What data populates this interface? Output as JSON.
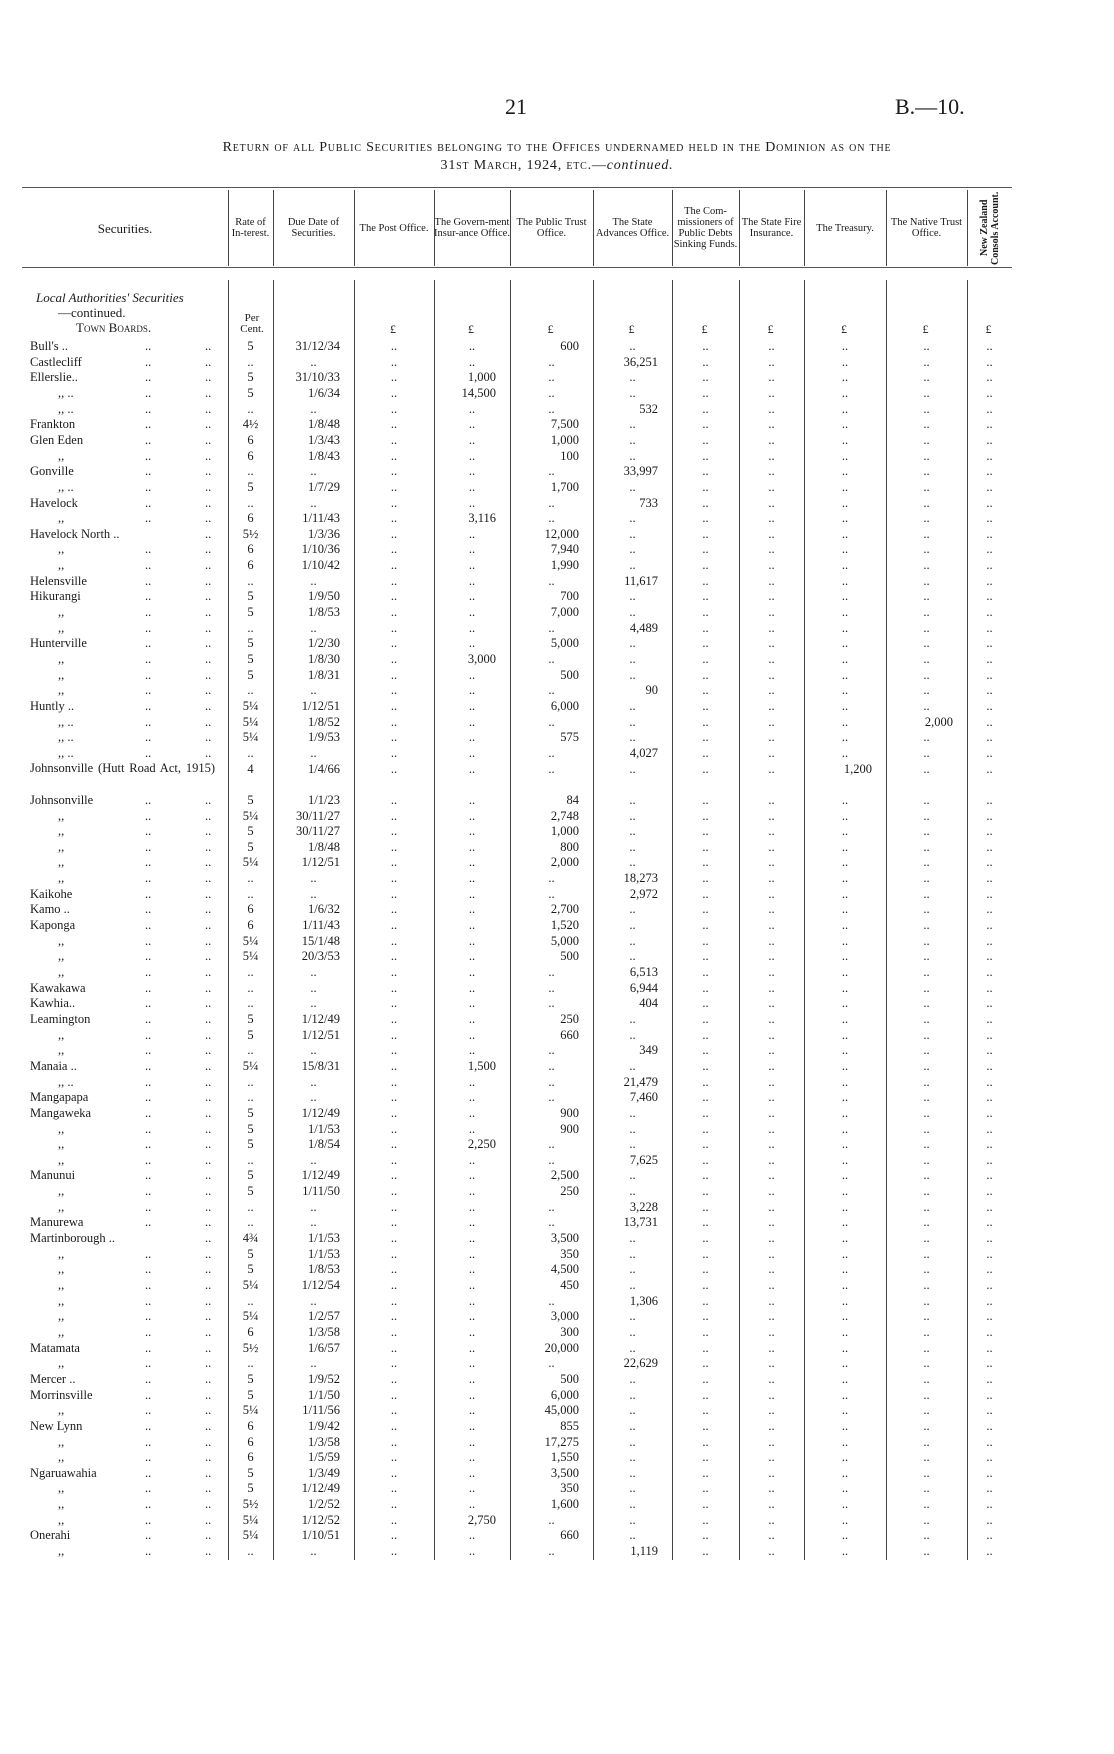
{
  "page_number": "21",
  "doc_ref": "B.—10.",
  "title_line1": "Return of all Public Securities belonging to the Offices undernamed held in the Dominion as on the",
  "title_line2": "31st March, 1924, etc.—",
  "title_continued": "continued.",
  "headers": [
    "Securities.",
    "Rate of In-terest.",
    "Due Date of Securities.",
    "The Post Office.",
    "The Govern-ment Insur-ance Office.",
    "The Public Trust Office.",
    "The State Advances Office.",
    "The Com-missioners of Public Debts Sinking Funds.",
    "The State Fire Insurance.",
    "The Treasury.",
    "The Native Trust Office.",
    "New Zealand Consols Account."
  ],
  "section_title": "Local Authorities' Securities",
  "section_continued": "—continued.",
  "subsection": "Town Boards.",
  "rate_unit": "Per Cent.",
  "currency_symbol": "£",
  "leader": "..",
  "rows": [
    [
      "Bull's ..",
      "5",
      "31/12/34",
      "..",
      "..",
      "600",
      "..",
      "..",
      "..",
      "..",
      "..",
      ".."
    ],
    [
      "Castlecliff",
      "..",
      "..",
      "..",
      "..",
      "..",
      "36,251",
      "..",
      "..",
      "..",
      "..",
      ".."
    ],
    [
      "Ellerslie..",
      "5",
      "31/10/33",
      "..",
      "1,000",
      "..",
      "..",
      "..",
      "..",
      "..",
      "..",
      ".."
    ],
    [
      ",, ..",
      "5",
      "1/6/34",
      "..",
      "14,500",
      "..",
      "..",
      "..",
      "..",
      "..",
      "..",
      ".."
    ],
    [
      ",, ..",
      "..",
      "..",
      "..",
      "..",
      "..",
      "532",
      "..",
      "..",
      "..",
      "..",
      ".."
    ],
    [
      "Frankton",
      "4½",
      "1/8/48",
      "..",
      "..",
      "7,500",
      "..",
      "..",
      "..",
      "..",
      "..",
      ".."
    ],
    [
      "Glen Eden",
      "6",
      "1/3/43",
      "..",
      "..",
      "1,000",
      "..",
      "..",
      "..",
      "..",
      "..",
      ".."
    ],
    [
      ",,",
      "6",
      "1/8/43",
      "..",
      "..",
      "100",
      "..",
      "..",
      "..",
      "..",
      "..",
      ".."
    ],
    [
      "Gonville",
      "..",
      "..",
      "..",
      "..",
      "..",
      "33,997",
      "..",
      "..",
      "..",
      "..",
      ".."
    ],
    [
      ",, ..",
      "5",
      "1/7/29",
      "..",
      "..",
      "1,700",
      "..",
      "..",
      "..",
      "..",
      "..",
      ".."
    ],
    [
      "Havelock",
      "..",
      "..",
      "..",
      "..",
      "..",
      "733",
      "..",
      "..",
      "..",
      "..",
      ".."
    ],
    [
      ",,",
      "6",
      "1/11/43",
      "..",
      "3,116",
      "..",
      "..",
      "..",
      "..",
      "..",
      "..",
      ".."
    ],
    [
      "Havelock North ..",
      "5½",
      "1/3/36",
      "..",
      "..",
      "12,000",
      "..",
      "..",
      "..",
      "..",
      "..",
      ".."
    ],
    [
      ",,",
      "6",
      "1/10/36",
      "..",
      "..",
      "7,940",
      "..",
      "..",
      "..",
      "..",
      "..",
      ".."
    ],
    [
      ",,",
      "6",
      "1/10/42",
      "..",
      "..",
      "1,990",
      "..",
      "..",
      "..",
      "..",
      "..",
      ".."
    ],
    [
      "Helensville",
      "..",
      "..",
      "..",
      "..",
      "..",
      "11,617",
      "..",
      "..",
      "..",
      "..",
      ".."
    ],
    [
      "Hikurangi",
      "5",
      "1/9/50",
      "..",
      "..",
      "700",
      "..",
      "..",
      "..",
      "..",
      "..",
      ".."
    ],
    [
      ",,",
      "5",
      "1/8/53",
      "..",
      "..",
      "7,000",
      "..",
      "..",
      "..",
      "..",
      "..",
      ".."
    ],
    [
      ",,",
      "..",
      "..",
      "..",
      "..",
      "..",
      "4,489",
      "..",
      "..",
      "..",
      "..",
      ".."
    ],
    [
      "Hunterville",
      "5",
      "1/2/30",
      "..",
      "..",
      "5,000",
      "..",
      "..",
      "..",
      "..",
      "..",
      ".."
    ],
    [
      ",,",
      "5",
      "1/8/30",
      "..",
      "3,000",
      "..",
      "..",
      "..",
      "..",
      "..",
      "..",
      ".."
    ],
    [
      ",,",
      "5",
      "1/8/31",
      "..",
      "..",
      "500",
      "..",
      "..",
      "..",
      "..",
      "..",
      ".."
    ],
    [
      ",,",
      "..",
      "..",
      "..",
      "..",
      "..",
      "90",
      "..",
      "..",
      "..",
      "..",
      ".."
    ],
    [
      "Huntly ..",
      "5¼",
      "1/12/51",
      "..",
      "..",
      "6,000",
      "..",
      "..",
      "..",
      "..",
      "..",
      ".."
    ],
    [
      ",, ..",
      "5¼",
      "1/8/52",
      "..",
      "..",
      "..",
      "..",
      "..",
      "..",
      "..",
      "2,000",
      ".."
    ],
    [
      ",, ..",
      "5¼",
      "1/9/53",
      "..",
      "..",
      "575",
      "..",
      "..",
      "..",
      "..",
      "..",
      ".."
    ],
    [
      ",, ..",
      "..",
      "..",
      "..",
      "..",
      "..",
      "4,027",
      "..",
      "..",
      "..",
      "..",
      ".."
    ],
    [
      "Johnsonville (Hutt Road Act, 1915)",
      "4",
      "1/4/66",
      "..",
      "..",
      "..",
      "..",
      "..",
      "..",
      "1,200",
      "..",
      ".."
    ],
    [
      "Johnsonville",
      "5",
      "1/1/23",
      "..",
      "..",
      "84",
      "..",
      "..",
      "..",
      "..",
      "..",
      ".."
    ],
    [
      ",,",
      "5¼",
      "30/11/27",
      "..",
      "..",
      "2,748",
      "..",
      "..",
      "..",
      "..",
      "..",
      ".."
    ],
    [
      ",,",
      "5",
      "30/11/27",
      "..",
      "..",
      "1,000",
      "..",
      "..",
      "..",
      "..",
      "..",
      ".."
    ],
    [
      ",,",
      "5",
      "1/8/48",
      "..",
      "..",
      "800",
      "..",
      "..",
      "..",
      "..",
      "..",
      ".."
    ],
    [
      ",,",
      "5¼",
      "1/12/51",
      "..",
      "..",
      "2,000",
      "..",
      "..",
      "..",
      "..",
      "..",
      ".."
    ],
    [
      ",,",
      "..",
      "..",
      "..",
      "..",
      "..",
      "18,273",
      "..",
      "..",
      "..",
      "..",
      ".."
    ],
    [
      "Kaikohe",
      "..",
      "..",
      "..",
      "..",
      "..",
      "2,972",
      "..",
      "..",
      "..",
      "..",
      ".."
    ],
    [
      "Kamo ..",
      "6",
      "1/6/32",
      "..",
      "..",
      "2,700",
      "..",
      "..",
      "..",
      "..",
      "..",
      ".."
    ],
    [
      "Kaponga",
      "6",
      "1/11/43",
      "..",
      "..",
      "1,520",
      "..",
      "..",
      "..",
      "..",
      "..",
      ".."
    ],
    [
      ",,",
      "5¼",
      "15/1/48",
      "..",
      "..",
      "5,000",
      "..",
      "..",
      "..",
      "..",
      "..",
      ".."
    ],
    [
      ",,",
      "5¼",
      "20/3/53",
      "..",
      "..",
      "500",
      "..",
      "..",
      "..",
      "..",
      "..",
      ".."
    ],
    [
      ",,",
      "..",
      "..",
      "..",
      "..",
      "..",
      "6,513",
      "..",
      "..",
      "..",
      "..",
      ".."
    ],
    [
      "Kawakawa",
      "..",
      "..",
      "..",
      "..",
      "..",
      "6,944",
      "..",
      "..",
      "..",
      "..",
      ".."
    ],
    [
      "Kawhia..",
      "..",
      "..",
      "..",
      "..",
      "..",
      "404",
      "..",
      "..",
      "..",
      "..",
      ".."
    ],
    [
      "Leamington",
      "5",
      "1/12/49",
      "..",
      "..",
      "250",
      "..",
      "..",
      "..",
      "..",
      "..",
      ".."
    ],
    [
      ",,",
      "5",
      "1/12/51",
      "..",
      "..",
      "660",
      "..",
      "..",
      "..",
      "..",
      "..",
      ".."
    ],
    [
      ",,",
      "..",
      "..",
      "..",
      "..",
      "..",
      "349",
      "..",
      "..",
      "..",
      "..",
      ".."
    ],
    [
      "Manaia ..",
      "5¼",
      "15/8/31",
      "..",
      "1,500",
      "..",
      "..",
      "..",
      "..",
      "..",
      "..",
      ".."
    ],
    [
      ",, ..",
      "..",
      "..",
      "..",
      "..",
      "..",
      "21,479",
      "..",
      "..",
      "..",
      "..",
      ".."
    ],
    [
      "Mangapapa",
      "..",
      "..",
      "..",
      "..",
      "..",
      "7,460",
      "..",
      "..",
      "..",
      "..",
      ".."
    ],
    [
      "Mangaweka",
      "5",
      "1/12/49",
      "..",
      "..",
      "900",
      "..",
      "..",
      "..",
      "..",
      "..",
      ".."
    ],
    [
      ",,",
      "5",
      "1/1/53",
      "..",
      "..",
      "900",
      "..",
      "..",
      "..",
      "..",
      "..",
      ".."
    ],
    [
      ",,",
      "5",
      "1/8/54",
      "..",
      "2,250",
      "..",
      "..",
      "..",
      "..",
      "..",
      "..",
      ".."
    ],
    [
      ",,",
      "..",
      "..",
      "..",
      "..",
      "..",
      "7,625",
      "..",
      "..",
      "..",
      "..",
      ".."
    ],
    [
      "Manunui",
      "5",
      "1/12/49",
      "..",
      "..",
      "2,500",
      "..",
      "..",
      "..",
      "..",
      "..",
      ".."
    ],
    [
      ",,",
      "5",
      "1/11/50",
      "..",
      "..",
      "250",
      "..",
      "..",
      "..",
      "..",
      "..",
      ".."
    ],
    [
      ",,",
      "..",
      "..",
      "..",
      "..",
      "..",
      "3,228",
      "..",
      "..",
      "..",
      "..",
      ".."
    ],
    [
      "Manurewa",
      "..",
      "..",
      "..",
      "..",
      "..",
      "13,731",
      "..",
      "..",
      "..",
      "..",
      ".."
    ],
    [
      "Martinborough ..",
      "4¾",
      "1/1/53",
      "..",
      "..",
      "3,500",
      "..",
      "..",
      "..",
      "..",
      "..",
      ".."
    ],
    [
      ",,",
      "5",
      "1/1/53",
      "..",
      "..",
      "350",
      "..",
      "..",
      "..",
      "..",
      "..",
      ".."
    ],
    [
      ",,",
      "5",
      "1/8/53",
      "..",
      "..",
      "4,500",
      "..",
      "..",
      "..",
      "..",
      "..",
      ".."
    ],
    [
      ",,",
      "5¼",
      "1/12/54",
      "..",
      "..",
      "450",
      "..",
      "..",
      "..",
      "..",
      "..",
      ".."
    ],
    [
      ",,",
      "..",
      "..",
      "..",
      "..",
      "..",
      "1,306",
      "..",
      "..",
      "..",
      "..",
      ".."
    ],
    [
      ",,",
      "5¼",
      "1/2/57",
      "..",
      "..",
      "3,000",
      "..",
      "..",
      "..",
      "..",
      "..",
      ".."
    ],
    [
      ",,",
      "6",
      "1/3/58",
      "..",
      "..",
      "300",
      "..",
      "..",
      "..",
      "..",
      "..",
      ".."
    ],
    [
      "Matamata",
      "5½",
      "1/6/57",
      "..",
      "..",
      "20,000",
      "..",
      "..",
      "..",
      "..",
      "..",
      ".."
    ],
    [
      ",,",
      "..",
      "..",
      "..",
      "..",
      "..",
      "22,629",
      "..",
      "..",
      "..",
      "..",
      ".."
    ],
    [
      "Mercer ..",
      "5",
      "1/9/52",
      "..",
      "..",
      "500",
      "..",
      "..",
      "..",
      "..",
      "..",
      ".."
    ],
    [
      "Morrinsville",
      "5",
      "1/1/50",
      "..",
      "..",
      "6,000",
      "..",
      "..",
      "..",
      "..",
      "..",
      ".."
    ],
    [
      ",,",
      "5¼",
      "1/11/56",
      "..",
      "..",
      "45,000",
      "..",
      "..",
      "..",
      "..",
      "..",
      ".."
    ],
    [
      "New Lynn",
      "6",
      "1/9/42",
      "..",
      "..",
      "855",
      "..",
      "..",
      "..",
      "..",
      "..",
      ".."
    ],
    [
      ",,",
      "6",
      "1/3/58",
      "..",
      "..",
      "17,275",
      "..",
      "..",
      "..",
      "..",
      "..",
      ".."
    ],
    [
      ",,",
      "6",
      "1/5/59",
      "..",
      "..",
      "1,550",
      "..",
      "..",
      "..",
      "..",
      "..",
      ".."
    ],
    [
      "Ngaruawahia",
      "5",
      "1/3/49",
      "..",
      "..",
      "3,500",
      "..",
      "..",
      "..",
      "..",
      "..",
      ".."
    ],
    [
      ",,",
      "5",
      "1/12/49",
      "..",
      "..",
      "350",
      "..",
      "..",
      "..",
      "..",
      "..",
      ".."
    ],
    [
      ",,",
      "5½",
      "1/2/52",
      "..",
      "..",
      "1,600",
      "..",
      "..",
      "..",
      "..",
      "..",
      ".."
    ],
    [
      ",,",
      "5¼",
      "1/12/52",
      "..",
      "2,750",
      "..",
      "..",
      "..",
      "..",
      "..",
      "..",
      ".."
    ],
    [
      "Onerahi",
      "5¼",
      "1/10/51",
      "..",
      "..",
      "660",
      "..",
      "..",
      "..",
      "..",
      "..",
      ".."
    ],
    [
      ",,",
      "..",
      "..",
      "..",
      "..",
      "..",
      "1,119",
      "..",
      "..",
      "..",
      "..",
      ".."
    ]
  ]
}
